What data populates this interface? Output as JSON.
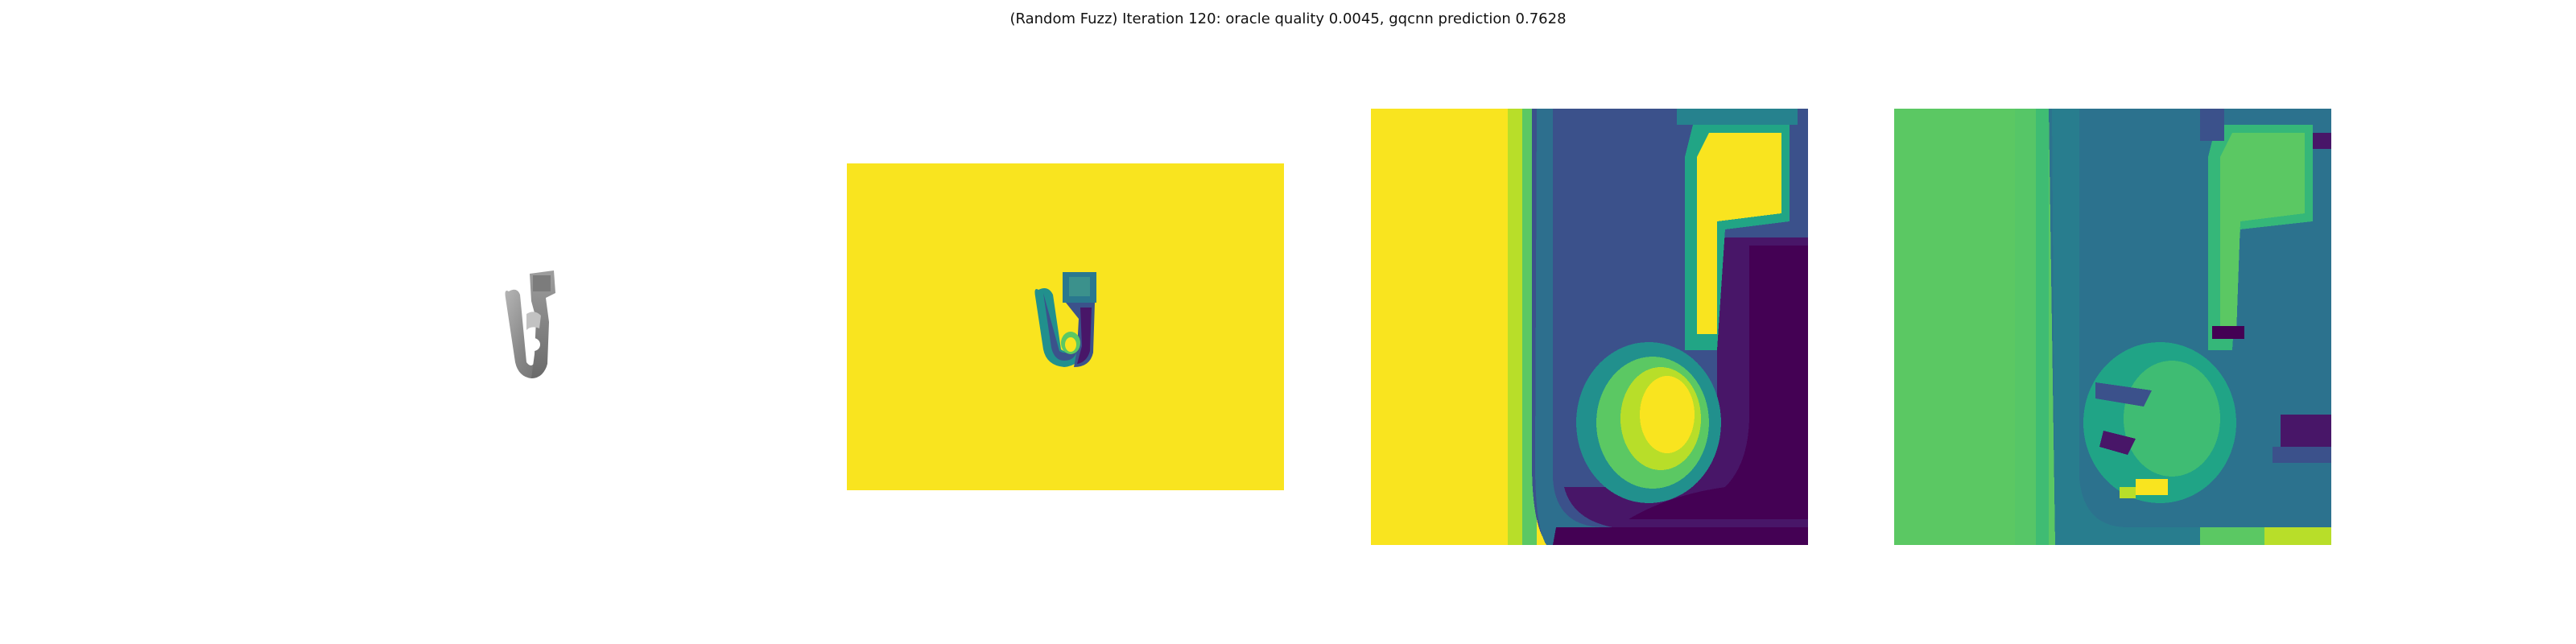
{
  "figure": {
    "title": "(Random Fuzz) Iteration 120: oracle quality 0.0045, gqcnn prediction 0.7628"
  },
  "panels": [
    {
      "id": "rendered-object",
      "kind": "grayscale-render"
    },
    {
      "id": "depth-image",
      "kind": "depth-colormap"
    },
    {
      "id": "depth-crop",
      "kind": "depth-crop-colormap"
    },
    {
      "id": "fuzzed-crop",
      "kind": "perturbed-crop-colormap"
    }
  ],
  "colors": {
    "viridis_yellow": "#f9e41f",
    "viridis_green": "#5bc863",
    "viridis_teal": "#21908d",
    "viridis_blue": "#3b518b",
    "viridis_purple": "#440154",
    "viridis_darkviolet": "#481668",
    "gray_object": "#8c8c8c"
  }
}
